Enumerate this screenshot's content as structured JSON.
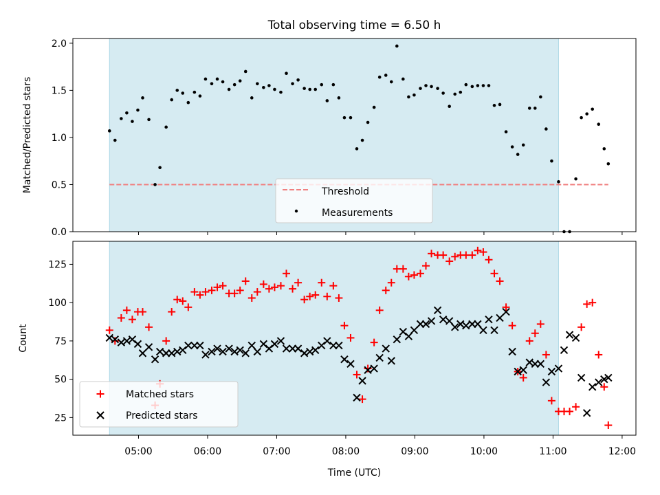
{
  "chart_data": [
    {
      "type": "scatter",
      "title": "Total observing time = 6.50 h",
      "xlabel": "",
      "ylabel": "Matched/Predicted stars",
      "xlim": [
        4.05,
        12.2
      ],
      "ylim": [
        0.0,
        2.05
      ],
      "yticks": [
        0.0,
        0.5,
        1.0,
        1.5,
        2.0
      ],
      "ytick_labels": [
        "0.0",
        "0.5",
        "1.0",
        "1.5",
        "2.0"
      ],
      "shaded_span": {
        "x": [
          4.58,
          11.08
        ],
        "color": "#add8e6"
      },
      "threshold": {
        "name": "Threshold",
        "y": 0.5,
        "x": [
          4.58,
          11.8
        ],
        "color": "#f08080"
      },
      "legend": {
        "position": "bottom-center",
        "labels": [
          "Threshold",
          "Measurements"
        ]
      },
      "series": [
        {
          "name": "Measurements",
          "color": "#000000",
          "x": [
            4.58,
            4.66,
            4.75,
            4.83,
            4.91,
            4.99,
            5.06,
            5.15,
            5.24,
            5.31,
            5.4,
            5.48,
            5.56,
            5.64,
            5.72,
            5.81,
            5.89,
            5.97,
            6.06,
            6.14,
            6.22,
            6.31,
            6.39,
            6.47,
            6.55,
            6.64,
            6.72,
            6.81,
            6.89,
            6.97,
            7.06,
            7.14,
            7.23,
            7.31,
            7.4,
            7.48,
            7.56,
            7.65,
            7.73,
            7.82,
            7.9,
            7.98,
            8.07,
            8.16,
            8.24,
            8.32,
            8.41,
            8.49,
            8.58,
            8.66,
            8.74,
            8.83,
            8.91,
            8.99,
            9.08,
            9.16,
            9.24,
            9.33,
            9.41,
            9.5,
            9.58,
            9.66,
            9.74,
            9.83,
            9.91,
            9.99,
            10.07,
            10.15,
            10.23,
            10.32,
            10.41,
            10.49,
            10.57,
            10.66,
            10.74,
            10.82,
            10.9,
            10.98,
            11.08,
            11.16,
            11.24,
            11.33,
            11.41,
            11.49,
            11.57,
            11.66,
            11.74,
            11.8
          ],
          "y": [
            1.07,
            0.97,
            1.2,
            1.26,
            1.17,
            1.29,
            1.42,
            1.19,
            0.5,
            0.68,
            1.11,
            1.4,
            1.5,
            1.47,
            1.37,
            1.48,
            1.44,
            1.62,
            1.57,
            1.62,
            1.59,
            1.51,
            1.56,
            1.6,
            1.7,
            1.42,
            1.57,
            1.53,
            1.55,
            1.51,
            1.48,
            1.68,
            1.57,
            1.61,
            1.52,
            1.51,
            1.51,
            1.56,
            1.39,
            1.56,
            1.42,
            1.21,
            1.21,
            0.88,
            0.97,
            1.16,
            1.32,
            1.64,
            1.66,
            1.59,
            1.97,
            1.62,
            1.43,
            1.45,
            1.52,
            1.55,
            1.54,
            1.52,
            1.47,
            1.33,
            1.46,
            1.48,
            1.56,
            1.54,
            1.55,
            1.55,
            1.55,
            1.34,
            1.35,
            1.06,
            0.9,
            0.82,
            0.92,
            1.31,
            1.31,
            1.43,
            1.09,
            0.75,
            0.53,
            0.0,
            0.0,
            0.56,
            1.21,
            1.25,
            1.3,
            1.14,
            0.88,
            0.72
          ]
        }
      ]
    },
    {
      "type": "scatter",
      "title": "",
      "xlabel": "Time (UTC)",
      "ylabel": "Count",
      "xlim": [
        4.05,
        12.2
      ],
      "ylim": [
        13.5,
        140.0
      ],
      "yticks": [
        25,
        50,
        75,
        100,
        125
      ],
      "ytick_labels": [
        "25",
        "50",
        "75",
        "100",
        "125"
      ],
      "xticks": [
        5,
        6,
        7,
        8,
        9,
        10,
        11,
        12
      ],
      "xtick_labels": [
        "05:00",
        "06:00",
        "07:00",
        "08:00",
        "09:00",
        "10:00",
        "11:00",
        "12:00"
      ],
      "shaded_span": {
        "x": [
          4.58,
          11.08
        ],
        "color": "#add8e6"
      },
      "legend": {
        "position": "bottom-left",
        "labels": [
          "Matched stars",
          "Predicted stars"
        ]
      },
      "series": [
        {
          "name": "Matched stars",
          "marker": "plus",
          "color": "#ff0000",
          "x": [
            4.58,
            4.66,
            4.75,
            4.83,
            4.91,
            4.99,
            5.06,
            5.15,
            5.24,
            5.31,
            5.4,
            5.48,
            5.56,
            5.64,
            5.72,
            5.81,
            5.89,
            5.97,
            6.06,
            6.14,
            6.22,
            6.31,
            6.39,
            6.47,
            6.55,
            6.64,
            6.72,
            6.81,
            6.89,
            6.97,
            7.06,
            7.14,
            7.23,
            7.31,
            7.4,
            7.48,
            7.56,
            7.65,
            7.73,
            7.82,
            7.9,
            7.98,
            8.07,
            8.16,
            8.24,
            8.32,
            8.41,
            8.49,
            8.58,
            8.66,
            8.74,
            8.83,
            8.91,
            8.99,
            9.08,
            9.16,
            9.24,
            9.33,
            9.41,
            9.5,
            9.58,
            9.66,
            9.74,
            9.83,
            9.91,
            9.99,
            10.07,
            10.15,
            10.23,
            10.32,
            10.41,
            10.49,
            10.57,
            10.66,
            10.74,
            10.82,
            10.9,
            10.98,
            11.08,
            11.16,
            11.24,
            11.33,
            11.41,
            11.49,
            11.57,
            11.66,
            11.74,
            11.8
          ],
          "y": [
            82,
            75,
            90,
            95,
            89,
            94,
            94,
            84,
            33,
            47,
            75,
            94,
            102,
            101,
            97,
            107,
            105,
            107,
            108,
            110,
            111,
            106,
            106,
            108,
            114,
            103,
            107,
            112,
            109,
            110,
            111,
            119,
            109,
            113,
            102,
            104,
            105,
            113,
            104,
            111,
            103,
            85,
            77,
            53,
            37,
            57,
            74,
            95,
            108,
            113,
            122,
            122,
            117,
            118,
            119,
            124,
            132,
            131,
            131,
            127,
            130,
            131,
            131,
            131,
            134,
            133,
            128,
            119,
            114,
            97,
            85,
            55,
            51,
            75,
            80,
            86,
            66,
            36,
            29,
            29,
            29,
            32,
            84,
            99,
            100,
            66,
            45,
            20
          ]
        },
        {
          "name": "Predicted stars",
          "marker": "x",
          "color": "#000000",
          "x": [
            4.58,
            4.66,
            4.75,
            4.83,
            4.91,
            4.99,
            5.06,
            5.15,
            5.24,
            5.31,
            5.4,
            5.48,
            5.56,
            5.64,
            5.72,
            5.81,
            5.89,
            5.97,
            6.06,
            6.14,
            6.22,
            6.31,
            6.39,
            6.47,
            6.55,
            6.64,
            6.72,
            6.81,
            6.89,
            6.97,
            7.06,
            7.14,
            7.23,
            7.31,
            7.4,
            7.48,
            7.56,
            7.65,
            7.73,
            7.82,
            7.9,
            7.98,
            8.07,
            8.16,
            8.24,
            8.32,
            8.41,
            8.49,
            8.58,
            8.66,
            8.74,
            8.83,
            8.91,
            8.99,
            9.08,
            9.16,
            9.24,
            9.33,
            9.41,
            9.5,
            9.58,
            9.66,
            9.74,
            9.83,
            9.91,
            9.99,
            10.07,
            10.15,
            10.23,
            10.32,
            10.41,
            10.49,
            10.57,
            10.66,
            10.74,
            10.82,
            10.9,
            10.98,
            11.08,
            11.16,
            11.24,
            11.33,
            11.41,
            11.49,
            11.57,
            11.66,
            11.74,
            11.8
          ],
          "y": [
            77,
            76,
            74,
            75,
            76,
            73,
            67,
            71,
            63,
            68,
            67,
            67,
            68,
            69,
            72,
            72,
            72,
            66,
            68,
            70,
            68,
            70,
            68,
            69,
            67,
            72,
            68,
            73,
            70,
            73,
            75,
            70,
            70,
            70,
            67,
            68,
            69,
            72,
            75,
            72,
            72,
            63,
            60,
            38,
            49,
            56,
            57,
            64,
            70,
            62,
            76,
            81,
            78,
            82,
            86,
            86,
            88,
            95,
            89,
            88,
            84,
            86,
            85,
            86,
            86,
            82,
            89,
            82,
            90,
            94,
            68,
            55,
            56,
            61,
            60,
            60,
            48,
            55,
            57,
            69,
            79,
            77,
            51,
            28,
            45,
            48,
            50,
            51
          ]
        }
      ]
    }
  ]
}
